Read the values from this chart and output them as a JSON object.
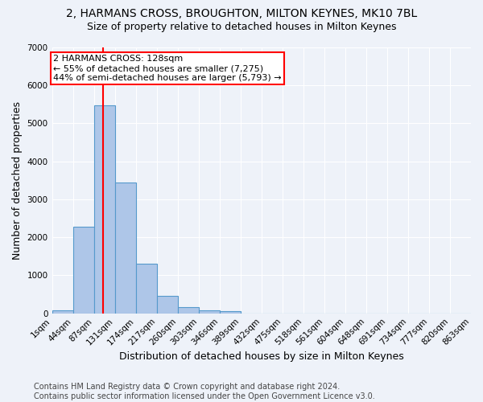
{
  "title1": "2, HARMANS CROSS, BROUGHTON, MILTON KEYNES, MK10 7BL",
  "title2": "Size of property relative to detached houses in Milton Keynes",
  "xlabel": "Distribution of detached houses by size in Milton Keynes",
  "ylabel": "Number of detached properties",
  "footer": "Contains HM Land Registry data © Crown copyright and database right 2024.\nContains public sector information licensed under the Open Government Licence v3.0.",
  "bin_labels": [
    "1sqm",
    "44sqm",
    "87sqm",
    "131sqm",
    "174sqm",
    "217sqm",
    "260sqm",
    "303sqm",
    "346sqm",
    "389sqm",
    "432sqm",
    "475sqm",
    "518sqm",
    "561sqm",
    "604sqm",
    "648sqm",
    "691sqm",
    "734sqm",
    "777sqm",
    "820sqm",
    "863sqm"
  ],
  "bar_values": [
    75,
    2280,
    5480,
    3450,
    1310,
    470,
    155,
    85,
    50,
    0,
    0,
    0,
    0,
    0,
    0,
    0,
    0,
    0,
    0,
    0
  ],
  "bar_color": "#aec6e8",
  "bar_edge_color": "#5599cc",
  "vline_x": 2.43,
  "vline_color": "red",
  "annotation_text": "2 HARMANS CROSS: 128sqm\n← 55% of detached houses are smaller (7,275)\n44% of semi-detached houses are larger (5,793) →",
  "annotation_box_color": "white",
  "annotation_box_edge": "red",
  "ylim": [
    0,
    7000
  ],
  "yticks": [
    0,
    1000,
    2000,
    3000,
    4000,
    5000,
    6000,
    7000
  ],
  "background_color": "#eef2f9",
  "grid_color": "white",
  "title1_fontsize": 10,
  "title2_fontsize": 9,
  "xlabel_fontsize": 9,
  "ylabel_fontsize": 9,
  "tick_fontsize": 7.5,
  "footer_fontsize": 7,
  "annot_fontsize": 8
}
